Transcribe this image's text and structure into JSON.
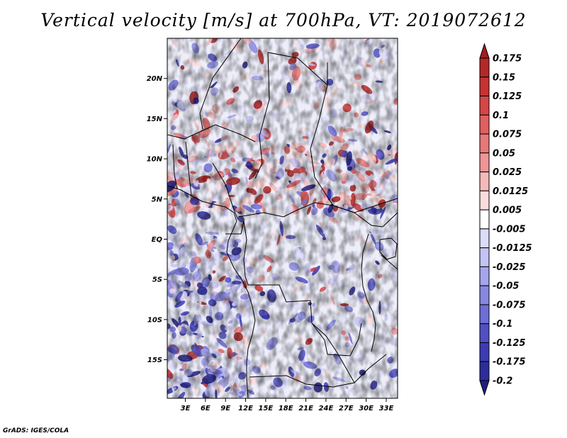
{
  "title": "Vertical velocity [m/s] at 700hPa, VT: 2019072612",
  "footer": "GrADS: IGES/COLA",
  "chart_data": {
    "type": "heatmap",
    "variable": "Vertical velocity",
    "units": "m/s",
    "level": "700hPa",
    "valid_time": "2019072612",
    "x_ticks": [
      {
        "value": 3,
        "label": "3E"
      },
      {
        "value": 6,
        "label": "6E"
      },
      {
        "value": 9,
        "label": "9E"
      },
      {
        "value": 12,
        "label": "12E"
      },
      {
        "value": 15,
        "label": "15E"
      },
      {
        "value": 18,
        "label": "18E"
      },
      {
        "value": 21,
        "label": "21E"
      },
      {
        "value": 24,
        "label": "24E"
      },
      {
        "value": 27,
        "label": "27E"
      },
      {
        "value": 30,
        "label": "30E"
      },
      {
        "value": 33,
        "label": "33E"
      }
    ],
    "y_ticks": [
      {
        "value": 20,
        "label": "20N"
      },
      {
        "value": 15,
        "label": "15N"
      },
      {
        "value": 10,
        "label": "10N"
      },
      {
        "value": 5,
        "label": "5N"
      },
      {
        "value": 0,
        "label": "EQ"
      },
      {
        "value": -5,
        "label": "5S"
      },
      {
        "value": -10,
        "label": "10S"
      },
      {
        "value": -15,
        "label": "15S"
      }
    ],
    "xlim": [
      0.3,
      34.7
    ],
    "ylim": [
      -19.8,
      25
    ],
    "colorbar": {
      "levels": [
        "0.175",
        "0.15",
        "0.125",
        "0.1",
        "0.075",
        "0.05",
        "0.025",
        "0.0125",
        "0.005",
        "-0.005",
        "-0.0125",
        "-0.025",
        "-0.05",
        "-0.075",
        "-0.1",
        "-0.125",
        "-0.175",
        "-0.2"
      ],
      "colors": [
        "#a01e1e",
        "#b42828",
        "#c83232",
        "#d74646",
        "#e15f5f",
        "#e87878",
        "#ef9696",
        "#f5b9b9",
        "#fadcdc",
        "#ffffff",
        "#dcdcfa",
        "#c3c3f5",
        "#a5a5ed",
        "#8787e1",
        "#6e6ed7",
        "#5050c3",
        "#3c3cb4",
        "#2d2d9b",
        "#1e1e82"
      ]
    }
  }
}
